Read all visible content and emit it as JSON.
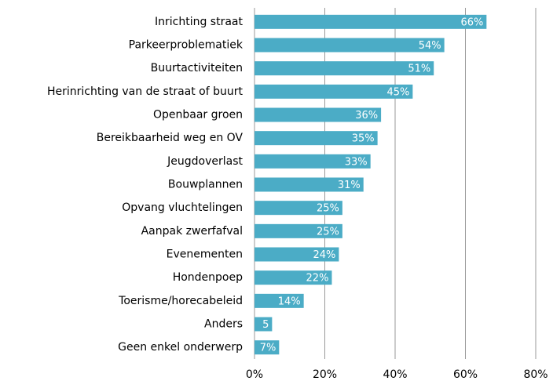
{
  "chart_data": {
    "type": "barh",
    "categories": [
      "Inrichting straat",
      "Parkeerproblematiek",
      "Buurtactiviteiten",
      "Herinrichting van de straat of buurt",
      "Openbaar groen",
      "Bereikbaarheid weg en OV",
      "Jeugdoverlast",
      "Bouwplannen",
      "Opvang vluchtelingen",
      "Aanpak zwerfafval",
      "Evenementen",
      "Hondenpoep",
      "Toerisme/horecabeleid",
      "Anders",
      "Geen enkel onderwerp"
    ],
    "values": [
      66,
      54,
      51,
      45,
      36,
      35,
      33,
      31,
      25,
      25,
      24,
      22,
      14,
      5,
      7
    ],
    "value_labels": [
      "66%",
      "54%",
      "51%",
      "45%",
      "36%",
      "35%",
      "33%",
      "31%",
      "25%",
      "25%",
      "24%",
      "22%",
      "14%",
      "5",
      "7%"
    ],
    "color": "#4bacc6",
    "xlim": [
      0,
      80
    ],
    "xticks": [
      {
        "value": 0,
        "label": "0%"
      },
      {
        "value": 20,
        "label": "20%"
      },
      {
        "value": 40,
        "label": "40%"
      },
      {
        "value": 60,
        "label": "60%"
      },
      {
        "value": 80,
        "label": "80%"
      }
    ],
    "grid": true
  }
}
